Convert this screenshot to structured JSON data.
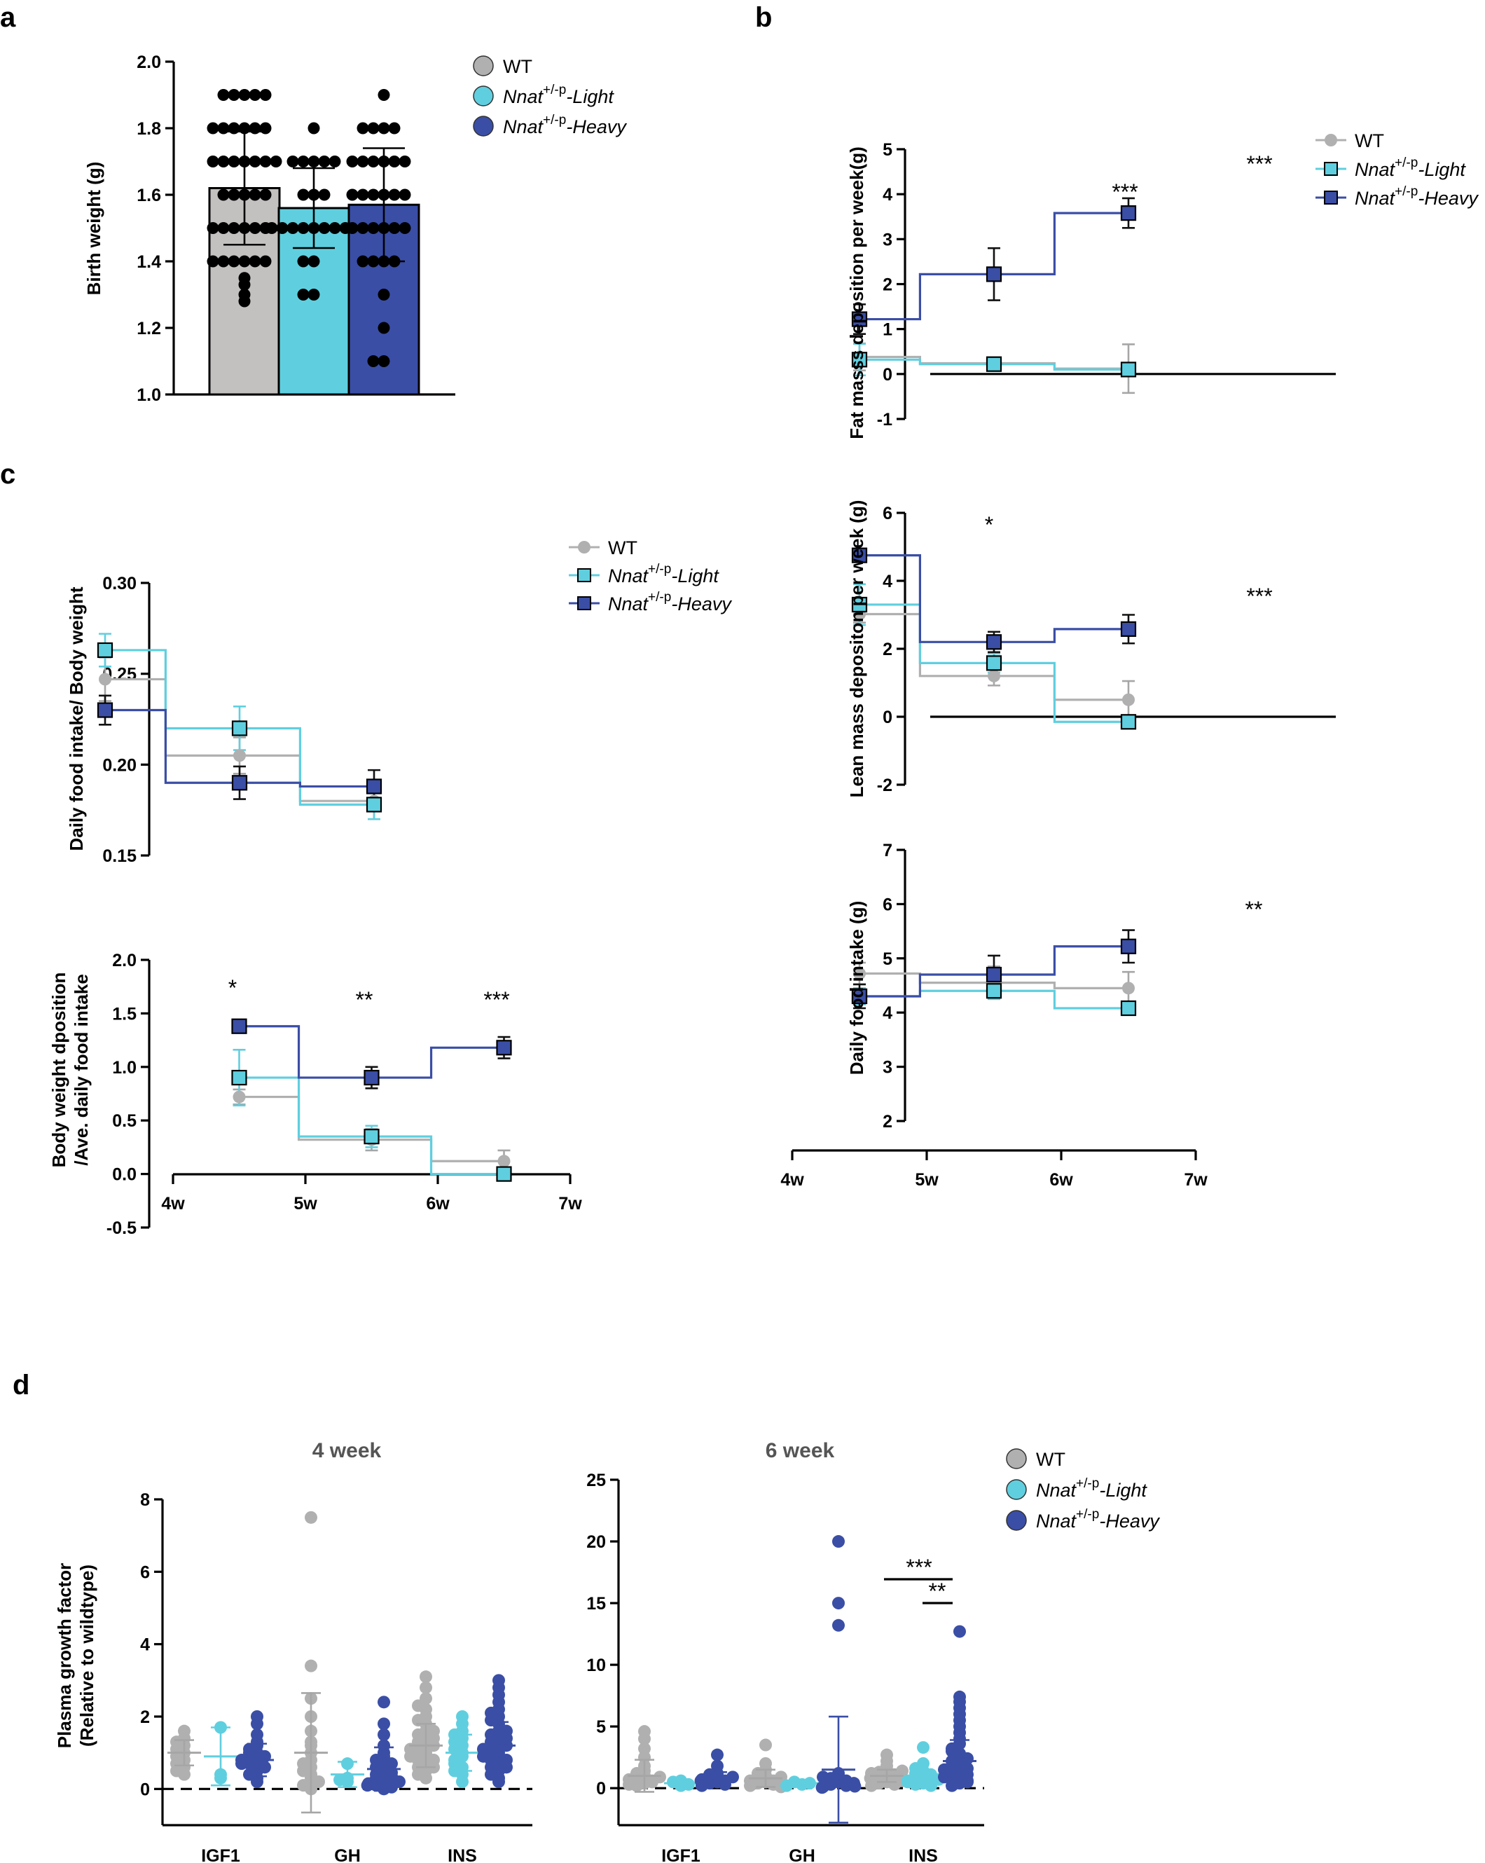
{
  "colors": {
    "wt": "#b0b0b0",
    "wt_dark": "#a6a6a6",
    "light": "#5fcfdf",
    "heavy": "#3a4ea6",
    "heavy_dark": "#2f439b"
  },
  "legend": {
    "wt": "WT",
    "gene": "Nnat",
    "sup": "+/-p",
    "light": "-Light",
    "heavy": "-Heavy"
  },
  "chart_data": [
    {
      "id": "a",
      "panel": "a",
      "type": "bar",
      "ylabel": "Birth weight (g)",
      "ylim": [
        1.0,
        2.0
      ],
      "yticks": [
        "1.0",
        "1.2",
        "1.4",
        "1.6",
        "1.8",
        "2.0"
      ],
      "categories": [
        "WT",
        "Nnat+/-p-Light",
        "Nnat+/-p-Heavy"
      ],
      "values": [
        1.62,
        1.56,
        1.57
      ],
      "sd": [
        0.17,
        0.12,
        0.17
      ],
      "legend_position": "top-right"
    },
    {
      "id": "b1",
      "panel": "b",
      "type": "line",
      "ylabel": "Fat masss deposition per week(g)",
      "ylim": [
        -1,
        5
      ],
      "yticks": [
        "-1",
        "0",
        "1",
        "2",
        "3",
        "4",
        "5"
      ],
      "xticks": [
        "4w",
        "5w",
        "6w",
        "7w"
      ],
      "x": [
        4.5,
        5.5,
        6.5
      ],
      "series": [
        {
          "name": "WT",
          "values": [
            0.38,
            0.24,
            0.12
          ],
          "err": [
            0.3,
            0.08,
            0.54
          ]
        },
        {
          "name": "Nnat+/-p-Light",
          "values": [
            0.32,
            0.22,
            0.1
          ],
          "err": [
            0.35,
            0.08,
            0.1
          ]
        },
        {
          "name": "Nnat+/-p-Heavy",
          "values": [
            1.22,
            2.22,
            3.58
          ],
          "err": [
            0.33,
            0.58,
            0.33
          ]
        }
      ],
      "annotations": [
        "***",
        "***"
      ],
      "legend_position": "top-right"
    },
    {
      "id": "b2",
      "panel": "",
      "type": "line",
      "ylabel": "Lean mass depositon per week (g)",
      "ylim": [
        -2,
        6
      ],
      "yticks": [
        "-2",
        "0",
        "2",
        "4",
        "6"
      ],
      "xticks": [
        "4w",
        "5w",
        "6w",
        "7w"
      ],
      "x": [
        4.5,
        5.5,
        6.5
      ],
      "series": [
        {
          "name": "WT",
          "values": [
            3.02,
            1.2,
            0.5
          ],
          "err": [
            0.25,
            0.28,
            0.55
          ]
        },
        {
          "name": "Nnat+/-p-Light",
          "values": [
            3.3,
            1.58,
            -0.15
          ],
          "err": [
            0.6,
            0.28,
            0.1
          ]
        },
        {
          "name": "Nnat+/-p-Heavy",
          "values": [
            4.75,
            2.2,
            2.58
          ],
          "err": [
            0.1,
            0.3,
            0.42
          ]
        }
      ],
      "annotations": [
        "*",
        "***"
      ]
    },
    {
      "id": "b3",
      "panel": "",
      "type": "line",
      "ylabel": "Daily food intake (g)",
      "ylim": [
        2,
        7
      ],
      "yticks": [
        "2",
        "3",
        "4",
        "5",
        "6",
        "7"
      ],
      "xticks": [
        "4w",
        "5w",
        "6w",
        "7w"
      ],
      "x": [
        4.5,
        5.5,
        6.5
      ],
      "series": [
        {
          "name": "WT",
          "values": [
            4.72,
            4.55,
            4.45
          ],
          "err": [
            0.2,
            0.3,
            0.3
          ]
        },
        {
          "name": "Nnat+/-p-Light",
          "values": [
            4.3,
            4.4,
            4.08
          ],
          "err": [
            0.15,
            0.15,
            0.1
          ]
        },
        {
          "name": "Nnat+/-p-Heavy",
          "values": [
            4.3,
            4.7,
            5.22
          ],
          "err": [
            0.22,
            0.35,
            0.3
          ]
        }
      ],
      "annotations": [
        "**"
      ]
    },
    {
      "id": "c1",
      "panel": "c",
      "type": "line",
      "ylabel": "Daily food intake/ Body weight",
      "ylim": [
        0.15,
        0.3
      ],
      "yticks": [
        "0.15",
        "0.20",
        "0.25",
        "0.30"
      ],
      "x": [
        4.5,
        5.5,
        6.5
      ],
      "series": [
        {
          "name": "WT",
          "values": [
            0.247,
            0.205,
            0.18
          ],
          "err": [
            0.012,
            0.01,
            0.01
          ]
        },
        {
          "name": "Nnat+/-p-Light",
          "values": [
            0.263,
            0.22,
            0.178
          ],
          "err": [
            0.009,
            0.012,
            0.008
          ]
        },
        {
          "name": "Nnat+/-p-Heavy",
          "values": [
            0.23,
            0.19,
            0.188
          ],
          "err": [
            0.008,
            0.009,
            0.009
          ]
        }
      ],
      "legend_position": "top-right"
    },
    {
      "id": "c2",
      "panel": "",
      "type": "line",
      "ylabel_lines": [
        "Body weight dposition",
        "/Ave. daily food intake"
      ],
      "ylim": [
        -0.5,
        2.0
      ],
      "yticks": [
        "-0.5",
        "0.0",
        "0.5",
        "1.0",
        "1.5",
        "2.0"
      ],
      "xticks": [
        "4w",
        "5w",
        "6w",
        "7w"
      ],
      "x": [
        4.5,
        5.5,
        6.5
      ],
      "series": [
        {
          "name": "WT",
          "values": [
            0.72,
            0.32,
            0.12
          ],
          "err": [
            0.07,
            0.1,
            0.1
          ]
        },
        {
          "name": "Nnat+/-p-Light",
          "values": [
            0.9,
            0.35,
            0.0
          ],
          "err": [
            0.26,
            0.1,
            0.02
          ]
        },
        {
          "name": "Nnat+/-p-Heavy",
          "values": [
            1.38,
            0.9,
            1.18
          ],
          "err": [
            0.04,
            0.1,
            0.1
          ]
        }
      ],
      "annotations": [
        "*",
        "**",
        "***"
      ]
    },
    {
      "id": "d1",
      "panel": "d",
      "type": "scatter",
      "title": "4 week",
      "ylabel_lines": [
        "Plasma growth factor",
        "(Relative to wildtype)"
      ],
      "ylim": [
        -1,
        8
      ],
      "yticks": [
        "0",
        "2",
        "4",
        "6",
        "8"
      ],
      "categories": [
        "IGF1",
        "GH",
        "INS"
      ],
      "groups": [
        {
          "cat": 0,
          "series": 0,
          "mean": 1.0,
          "sd": 0.35,
          "points": [
            0.4,
            0.6,
            0.8,
            1.0,
            1.2,
            1.4,
            1.6,
            0.9,
            1.1,
            0.7,
            1.3,
            0.5
          ]
        },
        {
          "cat": 0,
          "series": 1,
          "mean": 0.9,
          "sd": 0.8,
          "points": [
            0.3,
            1.7,
            0.4
          ]
        },
        {
          "cat": 0,
          "series": 2,
          "mean": 0.8,
          "sd": 0.45,
          "points": [
            0.3,
            0.5,
            0.6,
            0.7,
            0.8,
            0.9,
            1.0,
            1.2,
            1.5,
            1.8,
            2.0,
            0.4,
            0.6,
            0.7,
            0.9,
            1.1,
            1.3,
            0.2,
            0.8,
            1.0
          ]
        },
        {
          "cat": 1,
          "series": 0,
          "mean": 1.0,
          "sd": 1.65,
          "points": [
            7.5,
            3.4,
            2.5,
            2.0,
            1.6,
            1.3,
            1.0,
            0.8,
            0.6,
            0.4,
            0.2,
            0.1,
            0.3,
            0.5,
            0.7,
            1.2,
            0.0,
            0.2
          ]
        },
        {
          "cat": 1,
          "series": 1,
          "mean": 0.4,
          "sd": 0.35,
          "points": [
            0.2,
            0.7,
            0.3,
            0.25
          ]
        },
        {
          "cat": 1,
          "series": 2,
          "mean": 0.55,
          "sd": 0.6,
          "points": [
            2.4,
            1.8,
            1.5,
            1.2,
            1.0,
            0.9,
            0.8,
            0.6,
            0.5,
            0.4,
            0.3,
            0.2,
            0.1,
            0.0,
            0.05,
            0.15,
            0.3,
            0.45,
            0.6,
            0.7,
            0.2,
            0.1,
            0.35
          ]
        },
        {
          "cat": 2,
          "series": 0,
          "mean": 1.2,
          "sd": 0.6,
          "points": [
            3.1,
            2.8,
            2.5,
            2.2,
            2.0,
            1.8,
            1.6,
            1.5,
            1.4,
            1.3,
            1.2,
            1.1,
            1.0,
            0.9,
            0.8,
            0.7,
            0.6,
            0.5,
            0.4,
            0.3,
            1.0,
            1.2,
            1.4,
            0.8,
            0.6,
            1.6,
            1.9,
            2.3,
            0.9,
            1.1
          ]
        },
        {
          "cat": 2,
          "series": 1,
          "mean": 1.0,
          "sd": 0.5,
          "points": [
            2.0,
            1.8,
            1.6,
            1.4,
            1.2,
            1.0,
            0.9,
            0.8,
            0.6,
            0.4,
            0.2,
            1.1,
            1.3,
            0.7,
            0.5,
            1.5
          ]
        },
        {
          "cat": 2,
          "series": 2,
          "mean": 1.2,
          "sd": 0.65,
          "points": [
            3.0,
            2.8,
            2.6,
            2.4,
            2.2,
            2.0,
            1.8,
            1.6,
            1.5,
            1.4,
            1.3,
            1.2,
            1.1,
            1.0,
            0.9,
            0.8,
            0.7,
            0.6,
            0.5,
            0.4,
            0.3,
            0.2,
            1.0,
            1.2,
            1.4,
            0.8,
            1.6,
            1.9,
            2.1,
            0.9,
            1.1,
            0.6
          ]
        }
      ]
    },
    {
      "id": "d2",
      "panel": "",
      "type": "scatter",
      "title": "6 week",
      "ylim": [
        -3,
        25
      ],
      "yticks": [
        "0",
        "5",
        "10",
        "15",
        "20",
        "25"
      ],
      "categories": [
        "IGF1",
        "GH",
        "INS"
      ],
      "groups": [
        {
          "cat": 0,
          "series": 0,
          "mean": 1.0,
          "sd": 1.3,
          "points": [
            4.6,
            4.0,
            3.2,
            2.5,
            1.8,
            1.4,
            1.0,
            0.8,
            0.6,
            0.4,
            0.2,
            0.5,
            0.7,
            1.2,
            0.3,
            0.9
          ]
        },
        {
          "cat": 0,
          "series": 1,
          "mean": 0.4,
          "sd": 0.15,
          "points": [
            0.2,
            0.5,
            0.3,
            0.6
          ]
        },
        {
          "cat": 0,
          "series": 2,
          "mean": 0.8,
          "sd": 0.5,
          "points": [
            2.7,
            1.8,
            1.2,
            1.0,
            0.8,
            0.6,
            0.5,
            0.4,
            0.3,
            0.7,
            0.9,
            1.1,
            0.2,
            0.6
          ]
        },
        {
          "cat": 1,
          "series": 0,
          "mean": 0.8,
          "sd": 0.7,
          "points": [
            3.5,
            2.0,
            1.5,
            1.2,
            1.0,
            0.8,
            0.6,
            0.5,
            0.4,
            0.3,
            0.2,
            0.1,
            0.6,
            0.9
          ]
        },
        {
          "cat": 1,
          "series": 1,
          "mean": 0.4,
          "sd": 0.1,
          "points": [
            0.3,
            0.5,
            0.4,
            0.2
          ]
        },
        {
          "cat": 1,
          "series": 2,
          "mean": 1.5,
          "sd": 4.3,
          "points": [
            20.0,
            15.0,
            13.2,
            1.0,
            0.8,
            0.5,
            0.3,
            0.2,
            0.1,
            0.4,
            0.6,
            0.9,
            1.2,
            0.05,
            0.15
          ]
        },
        {
          "cat": 2,
          "series": 0,
          "mean": 1.0,
          "sd": 0.5,
          "points": [
            2.7,
            2.2,
            1.8,
            1.5,
            1.3,
            1.1,
            1.0,
            0.9,
            0.8,
            0.7,
            0.6,
            0.5,
            0.4,
            0.3,
            0.2,
            1.2,
            1.4,
            0.8,
            0.6
          ]
        },
        {
          "cat": 2,
          "series": 1,
          "mean": 1.0,
          "sd": 0.5,
          "points": [
            3.3,
            2.0,
            1.6,
            1.4,
            1.2,
            1.0,
            0.9,
            0.8,
            0.6,
            0.4,
            0.3,
            0.2,
            1.1,
            0.7,
            0.5
          ]
        },
        {
          "cat": 2,
          "series": 2,
          "mean": 2.2,
          "sd": 1.7,
          "points": [
            12.7,
            7.4,
            7.0,
            6.5,
            6.0,
            5.5,
            5.0,
            4.5,
            4.0,
            3.6,
            3.2,
            2.8,
            2.5,
            2.2,
            2.0,
            1.8,
            1.6,
            1.4,
            1.2,
            1.0,
            0.8,
            0.6,
            0.4,
            0.2,
            1.1,
            1.5,
            2.4,
            3.0,
            0.9,
            0.5
          ]
        }
      ],
      "annotations": [
        "***",
        "**"
      ]
    }
  ]
}
